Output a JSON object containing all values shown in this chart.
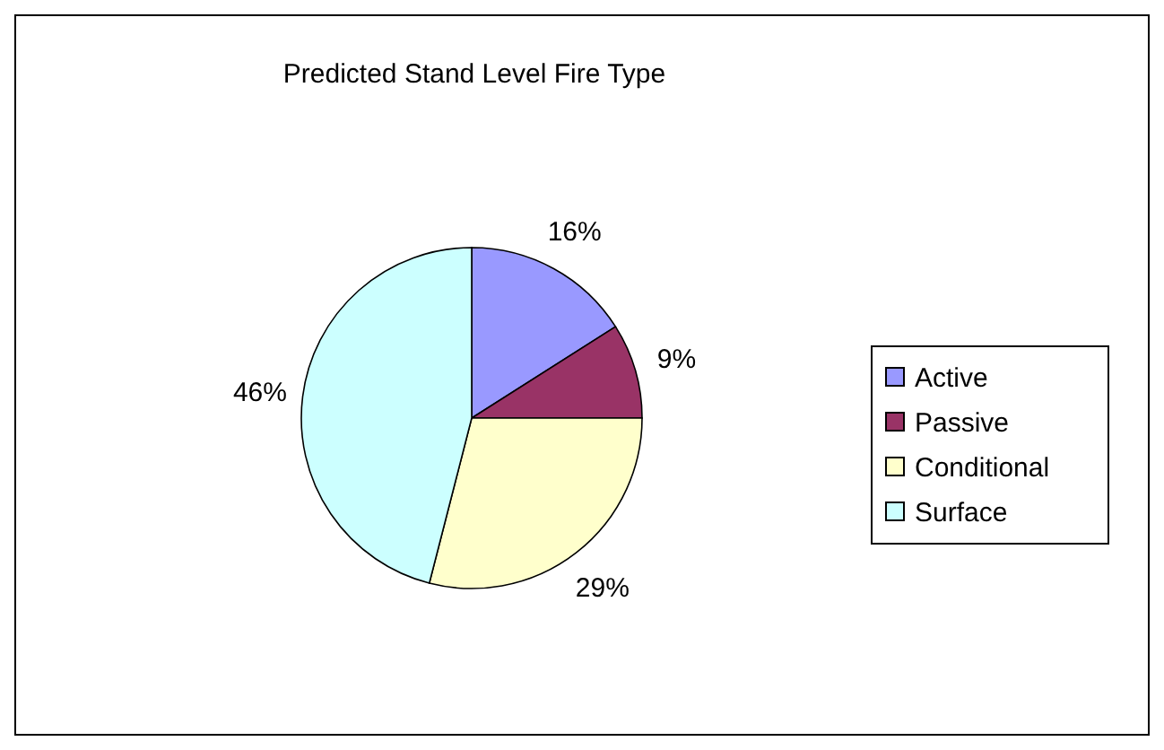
{
  "chart_data": {
    "type": "pie",
    "title": "Predicted Stand Level Fire Type",
    "categories": [
      "Active",
      "Passive",
      "Conditional",
      "Surface"
    ],
    "values": [
      16,
      9,
      29,
      46
    ],
    "colors": [
      "#9999ff",
      "#993366",
      "#ffffcc",
      "#ccffff"
    ],
    "value_labels": [
      "16%",
      "9%",
      "29%",
      "46%"
    ],
    "legend": "right"
  }
}
